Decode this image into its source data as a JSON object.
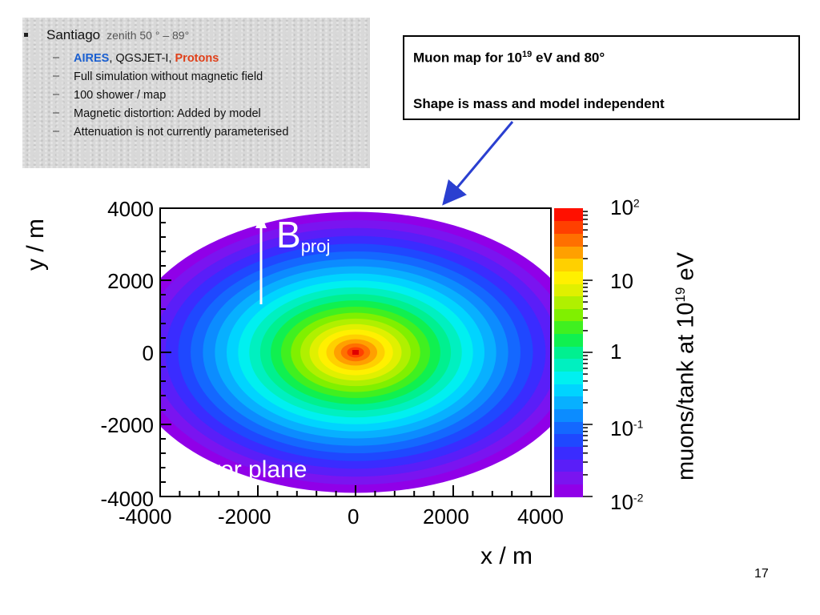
{
  "info": {
    "heading": "Santiago",
    "zenith": "zenith 50 ° – 89°",
    "items": [
      {
        "parts": [
          {
            "text": "AIRES",
            "cls": "c-aires"
          },
          {
            "text": ", QGSJET-I, ",
            "cls": ""
          },
          {
            "text": "Protons",
            "cls": "c-protons"
          }
        ]
      },
      {
        "parts": [
          {
            "text": "Full simulation without magnetic field",
            "cls": ""
          }
        ]
      },
      {
        "parts": [
          {
            "text": "100 shower / map",
            "cls": ""
          }
        ]
      },
      {
        "parts": [
          {
            "text": "Magnetic distortion: Added by model",
            "cls": ""
          }
        ]
      },
      {
        "parts": [
          {
            "text": "Attenuation is not currently parameterised",
            "cls": ""
          }
        ]
      }
    ]
  },
  "callout": {
    "line1_prefix": "Muon map for  10",
    "line1_sup": "19",
    "line1_suffix": " eV and 80°",
    "line2": "Shape is mass and model independent"
  },
  "chart_data": {
    "type": "heatmap",
    "xlabel": "x / m",
    "ylabel": "y / m",
    "xlim": [
      -4000,
      4000
    ],
    "ylim": [
      -4000,
      4000
    ],
    "xticks": [
      "-4000",
      "-2000",
      "0",
      "2000",
      "4000"
    ],
    "yticks": [
      "4000",
      "2000",
      "0",
      "-2000",
      "-4000"
    ],
    "colorbar": {
      "label_prefix": "muons/tank at 10",
      "label_sup": "19",
      "label_suffix": " eV",
      "scale": "log",
      "range": [
        0.01,
        100
      ],
      "tick_labels": [
        {
          "base": "10",
          "exp": "2",
          "value": 100
        },
        {
          "base": "10",
          "exp": "",
          "value": 10
        },
        {
          "base": "1",
          "exp": "",
          "value": 1
        },
        {
          "base": "10",
          "exp": "-1",
          "value": 0.1
        },
        {
          "base": "10",
          "exp": "-2",
          "value": 0.01
        }
      ],
      "colors": [
        "#9000e8",
        "#7a14f0",
        "#5a1ef8",
        "#3a2cff",
        "#1f48ff",
        "#1468ff",
        "#0c8cff",
        "#08b0ff",
        "#00d4ff",
        "#00f0f0",
        "#00f0c0",
        "#00f090",
        "#10f050",
        "#40f020",
        "#80f000",
        "#b0f000",
        "#e0f000",
        "#fff000",
        "#ffd000",
        "#ffa000",
        "#ff7000",
        "#ff4000",
        "#ff1000"
      ]
    },
    "center": {
      "x": 0,
      "y": 0,
      "peak": 100
    },
    "annotations": [
      {
        "text": "B",
        "sub": "proj"
      },
      {
        "text": "shower plane"
      }
    ]
  },
  "page_number": "17"
}
